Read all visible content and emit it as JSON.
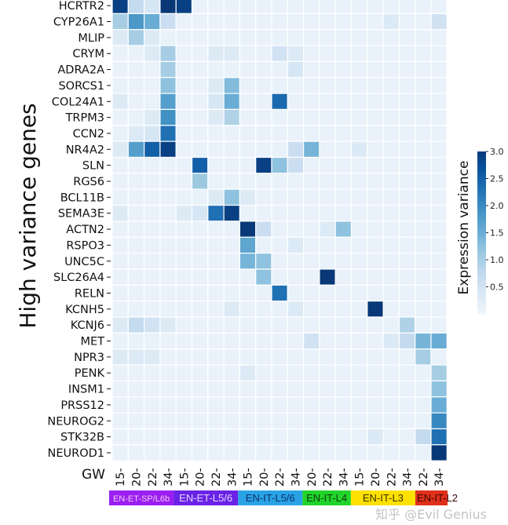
{
  "chart_data": {
    "type": "heatmap",
    "ylabel": "High variance genes",
    "xlabel": "GW",
    "colorbar": {
      "label": "Expression variance",
      "range": [
        0,
        3.0
      ],
      "ticks": [
        "0.5",
        "1.0",
        "1.5",
        "2.0",
        "2.5",
        "3.0"
      ],
      "colormap": "Blues"
    },
    "rows": [
      "HCRTR2",
      "CYP26A1",
      "MLIP",
      "CRYM",
      "ADRA2A",
      "SORCS1",
      "COL24A1",
      "TRPM3",
      "CCN2",
      "NR4A2",
      "SLN",
      "RGS6",
      "BCL11B",
      "SEMA3E",
      "ACTN2",
      "RSPO3",
      "UNC5C",
      "SLC26A4",
      "RELN",
      "KCNH5",
      "KCNJ6",
      "MET",
      "NPR3",
      "PENK",
      "INSM1",
      "PRSS12",
      "NEUROG2",
      "STK32B",
      "NEUROD1"
    ],
    "highlighted_rows": {
      "names": [
        "CCN2",
        "SEMA3E"
      ],
      "color": "#e3120b"
    },
    "columns": [
      "15",
      "20",
      "22",
      "34",
      "15",
      "20",
      "22",
      "34",
      "15",
      "20",
      "22",
      "34",
      "20",
      "22",
      "34",
      "15",
      "20",
      "22",
      "34",
      "22",
      "34"
    ],
    "groups": [
      {
        "label": "EN-ET-SP/L6b",
        "span": 4,
        "color": "#9a1ff0",
        "text_color": "#f3c8f5"
      },
      {
        "label": "EN-ET-L5/6",
        "span": 4,
        "color": "#6a22e6",
        "text_color": "#e4d8ff"
      },
      {
        "label": "EN-IT-L5/6",
        "span": 4,
        "color": "#29a3e6",
        "text_color": "#0d2f6e"
      },
      {
        "label": "EN-IT-L4",
        "span": 3,
        "color": "#22d42a",
        "text_color": "#0b3a0b"
      },
      {
        "label": "EN-IT-L3",
        "span": 4,
        "color": "#ffe100",
        "text_color": "#3a3000"
      },
      {
        "label": "EN-IT-L2",
        "span": 2,
        "color": "#e0301a",
        "text_color": "#3a0800"
      }
    ],
    "baseline": 0.1,
    "values": {
      "HCRTR2": {
        "0": 2.9,
        "1": 0.7,
        "2": 0.4,
        "3": 3.0,
        "4": 2.9
      },
      "CYP26A1": {
        "0": 1.0,
        "1": 1.8,
        "2": 1.5,
        "3": 0.6,
        "17": 0.3,
        "20": 0.5
      },
      "MLIP": {
        "0": 0.3,
        "1": 1.0,
        "2": 0.3
      },
      "CRYM": {
        "2": 0.3,
        "3": 1.0,
        "6": 0.3,
        "7": 0.3,
        "10": 0.5,
        "11": 0.3
      },
      "ADRA2A": {
        "3": 1.0,
        "11": 0.4
      },
      "SORCS1": {
        "3": 1.2,
        "6": 0.3,
        "7": 1.3
      },
      "COL24A1": {
        "0": 0.3,
        "3": 1.7,
        "6": 0.4,
        "7": 1.5,
        "10": 2.4
      },
      "TRPM3": {
        "2": 0.3,
        "3": 1.9,
        "6": 0.3,
        "7": 0.9
      },
      "CCN2": {
        "1": 0.3,
        "2": 0.4,
        "3": 2.3
      },
      "NR4A2": {
        "0": 0.3,
        "1": 1.7,
        "2": 2.5,
        "3": 2.9,
        "11": 0.6,
        "12": 1.4,
        "15": 0.3
      },
      "SLN": {
        "5": 2.5,
        "9": 2.9,
        "10": 1.2,
        "11": 0.6
      },
      "RGS6": {
        "5": 1.1
      },
      "BCL11B": {
        "6": 0.3,
        "7": 1.2,
        "8": 0.3
      },
      "SEMA3E": {
        "0": 0.3,
        "4": 0.3,
        "5": 0.4,
        "6": 2.3,
        "7": 2.9
      },
      "ACTN2": {
        "8": 3.0,
        "9": 0.6,
        "13": 0.3,
        "14": 1.2
      },
      "RSPO3": {
        "8": 1.6,
        "11": 0.3
      },
      "UNC5C": {
        "8": 1.4,
        "9": 1.2
      },
      "SLC26A4": {
        "9": 1.2,
        "13": 3.0
      },
      "RELN": {
        "10": 2.3
      },
      "KCNH5": {
        "7": 0.3,
        "11": 0.3,
        "16": 3.0
      },
      "KCNJ6": {
        "0": 0.3,
        "1": 0.7,
        "2": 0.5,
        "3": 0.3,
        "18": 0.9
      },
      "MET": {
        "12": 0.5,
        "17": 0.3,
        "18": 0.7,
        "19": 1.4,
        "20": 1.5
      },
      "NPR3": {
        "0": 0.3,
        "1": 0.3,
        "2": 0.3,
        "19": 1.0
      },
      "PENK": {
        "8": 0.3,
        "20": 1.0
      },
      "INSM1": {
        "20": 1.2
      },
      "PRSS12": {
        "20": 1.5
      },
      "NEUROG2": {
        "20": 2.0
      },
      "STK32B": {
        "16": 0.3,
        "19": 0.7,
        "20": 2.3
      },
      "NEUROD1": {
        "20": 3.0
      }
    }
  },
  "watermark": "知乎 @Evil Genius"
}
